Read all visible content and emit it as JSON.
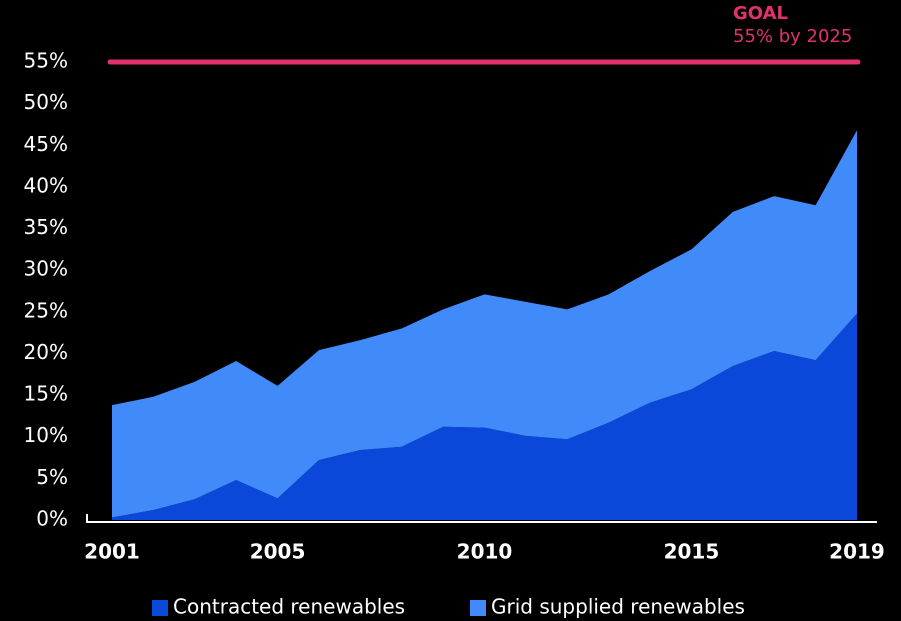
{
  "chart_data": {
    "type": "stacked_area",
    "x": [
      2001,
      2002,
      2003,
      2004,
      2005,
      2006,
      2007,
      2008,
      2009,
      2010,
      2011,
      2012,
      2013,
      2014,
      2015,
      2016,
      2017,
      2018,
      2019
    ],
    "series": [
      {
        "name": "Contracted renewables",
        "color": "#0b47d8",
        "values": [
          0.3,
          1.2,
          2.5,
          4.8,
          2.6,
          7.2,
          8.4,
          8.8,
          11.2,
          11.1,
          10.1,
          9.7,
          11.7,
          14.1,
          15.7,
          18.5,
          20.3,
          19.2,
          24.8
        ]
      },
      {
        "name": "Grid supplied renewables",
        "color": "#418afa",
        "values": [
          13.5,
          13.6,
          14.1,
          14.3,
          13.5,
          13.2,
          13.2,
          14.2,
          14.1,
          16.0,
          16.1,
          15.6,
          15.4,
          15.8,
          16.8,
          18.5,
          18.6,
          18.6,
          22.0
        ]
      }
    ],
    "xlim": [
      2001,
      2019
    ],
    "xticks": [
      2001,
      2005,
      2010,
      2015,
      2019
    ],
    "ylim": [
      0,
      55
    ],
    "yticks": [
      {
        "value": 0,
        "label": "0%"
      },
      {
        "value": 5,
        "label": "5%"
      },
      {
        "value": 10,
        "label": "10%"
      },
      {
        "value": 15,
        "label": "15%"
      },
      {
        "value": 20,
        "label": "20%"
      },
      {
        "value": 25,
        "label": "25%"
      },
      {
        "value": 30,
        "label": "30%"
      },
      {
        "value": 35,
        "label": "35%"
      },
      {
        "value": 40,
        "label": "40%"
      },
      {
        "value": 45,
        "label": "45%"
      },
      {
        "value": 50,
        "label": "50%"
      },
      {
        "value": 55,
        "label": "55%"
      }
    ],
    "goal": {
      "value": 55,
      "label": "GOAL",
      "note": "55% by 2025",
      "color": "#e0336e"
    },
    "legend": "bottom"
  }
}
